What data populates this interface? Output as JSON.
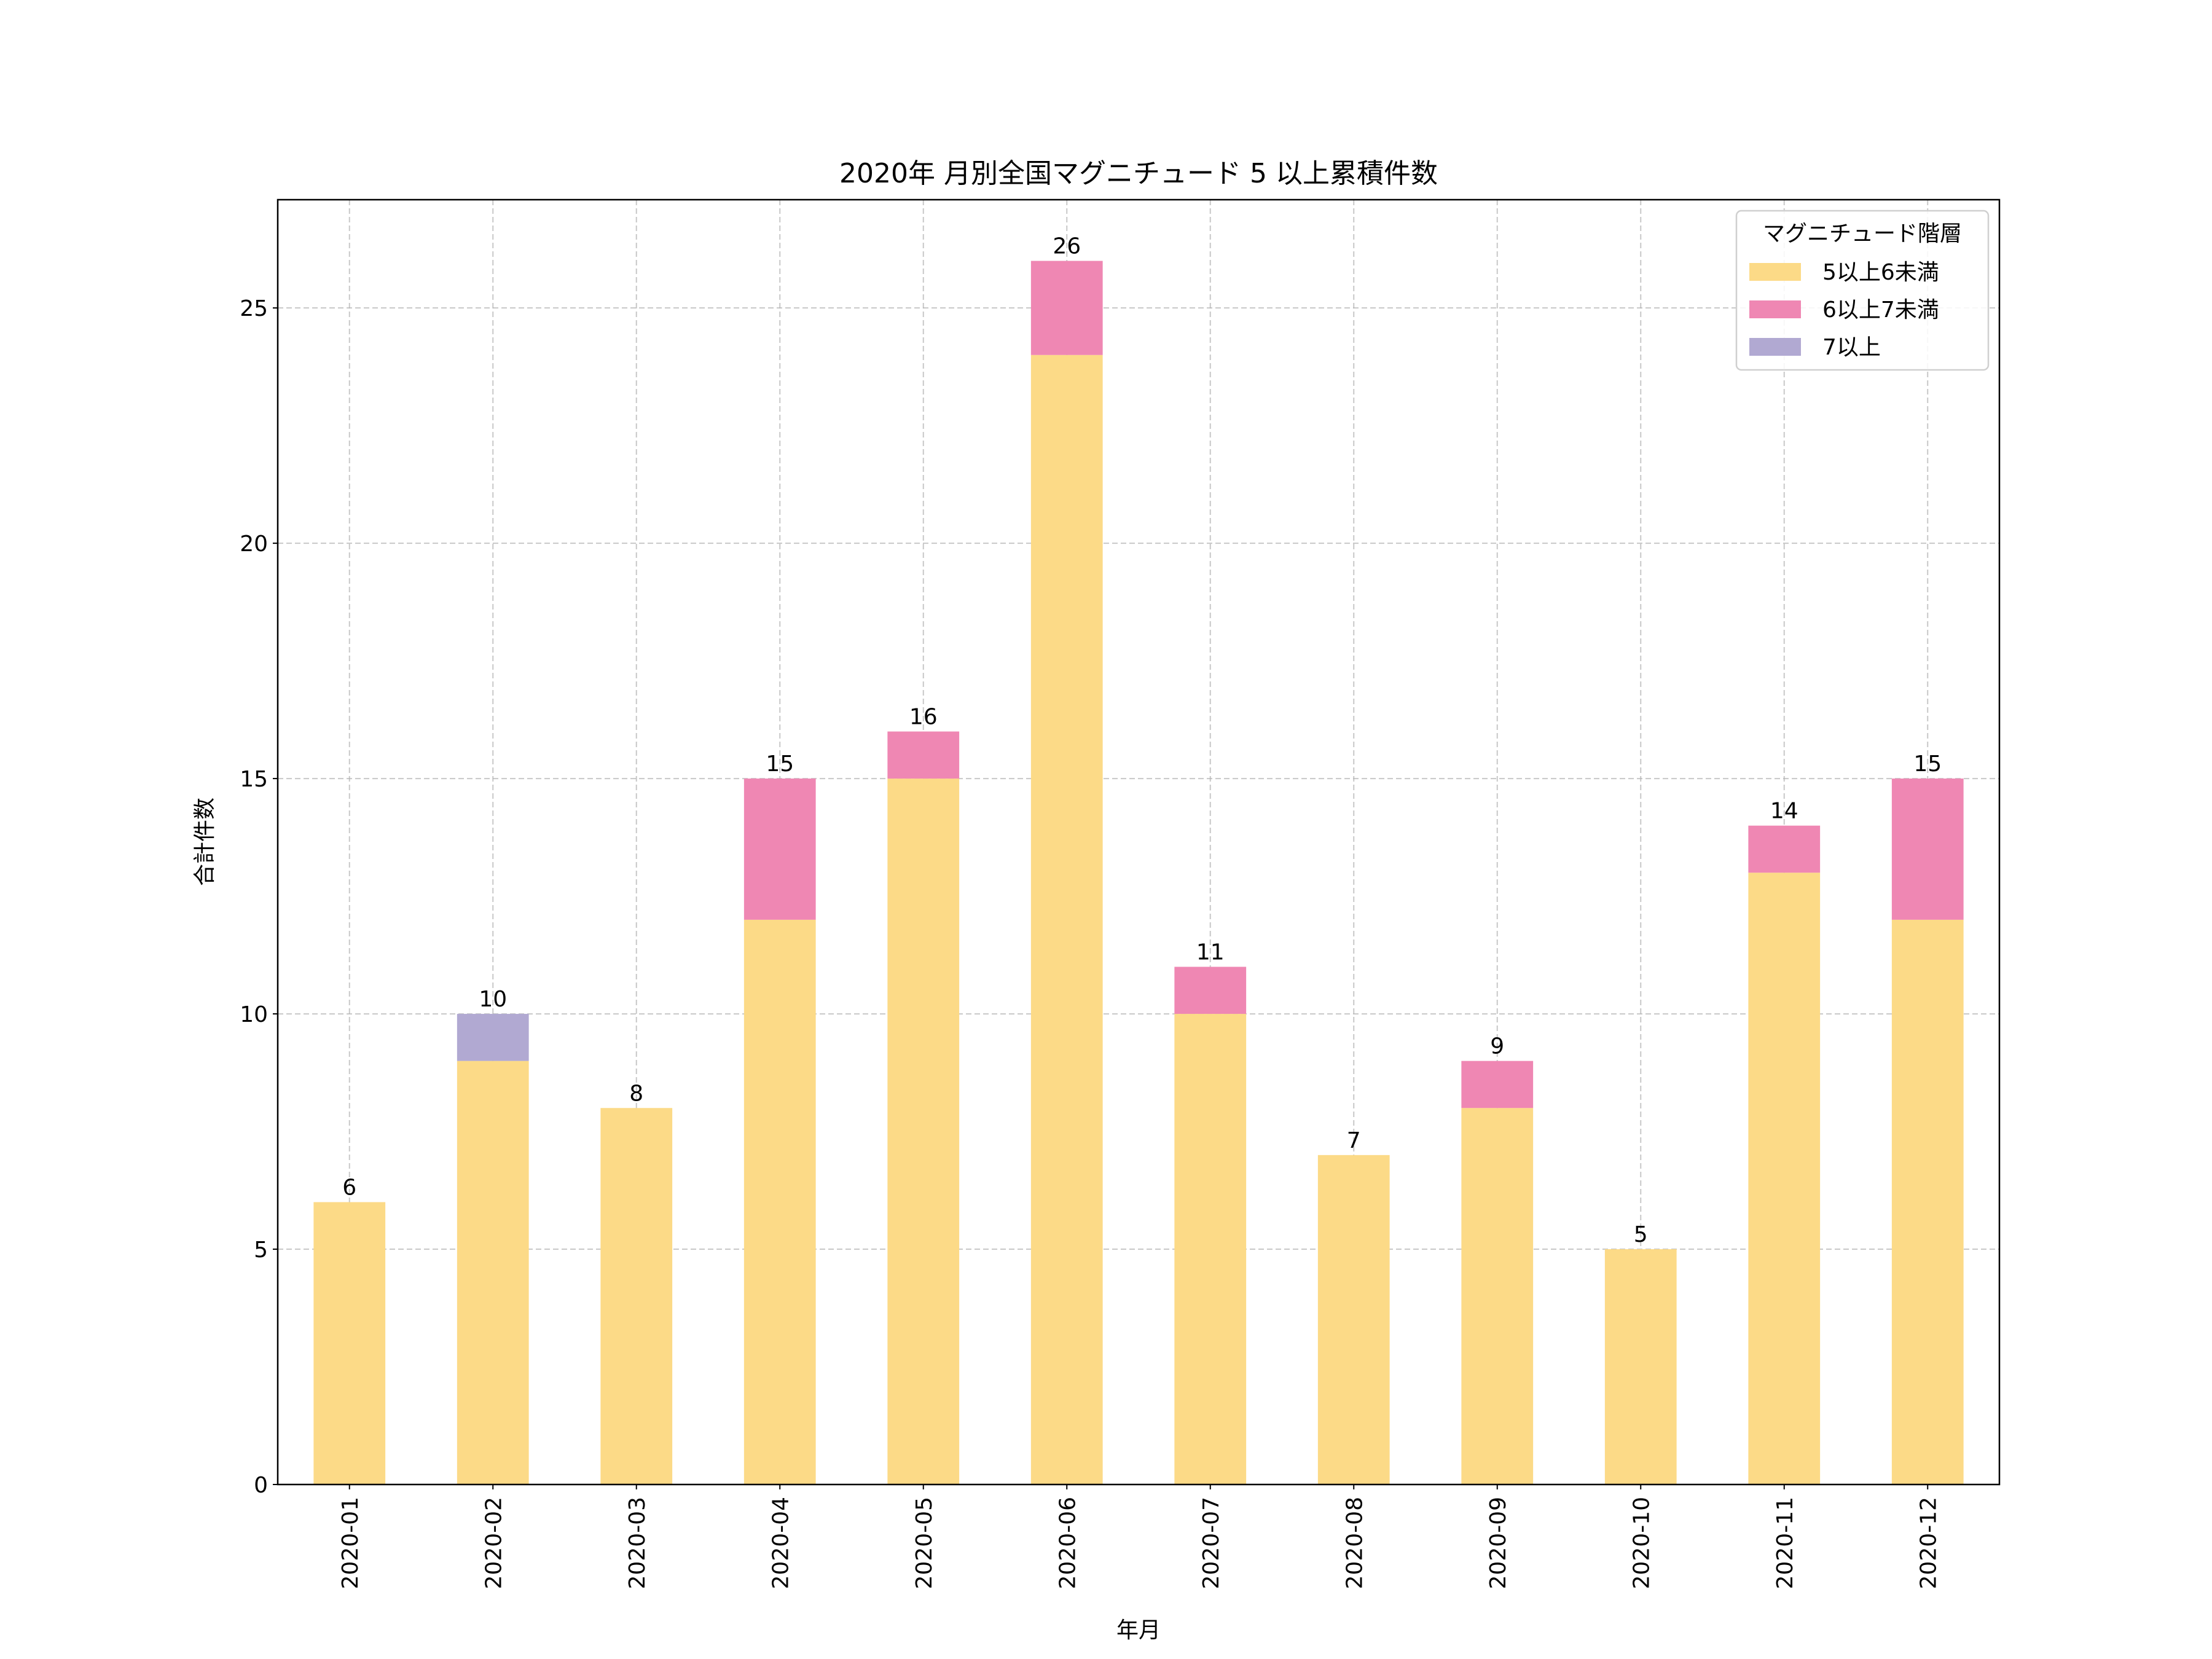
{
  "chart_data": {
    "type": "bar",
    "stacked": true,
    "title": "2020年 月別全国マグニチュード 5 以上累積件数",
    "xlabel": "年月",
    "ylabel": "合計件数",
    "categories": [
      "2020-01",
      "2020-02",
      "2020-03",
      "2020-04",
      "2020-05",
      "2020-06",
      "2020-07",
      "2020-08",
      "2020-09",
      "2020-10",
      "2020-11",
      "2020-12"
    ],
    "series": [
      {
        "name": "5以上6未満",
        "color": "#fcda87",
        "values": [
          6,
          9,
          8,
          12,
          15,
          24,
          10,
          7,
          8,
          5,
          13,
          12
        ]
      },
      {
        "name": "6以上7未満",
        "color": "#ef87b3",
        "values": [
          0,
          0,
          0,
          3,
          1,
          2,
          1,
          0,
          1,
          0,
          1,
          3
        ]
      },
      {
        "name": "7以上",
        "color": "#b1a9d2",
        "values": [
          0,
          1,
          0,
          0,
          0,
          0,
          0,
          0,
          0,
          0,
          0,
          0
        ]
      }
    ],
    "totals": [
      6,
      10,
      8,
      15,
      16,
      26,
      11,
      7,
      9,
      5,
      14,
      15
    ],
    "ylim": [
      0,
      27.3
    ],
    "yticks": [
      0,
      5,
      10,
      15,
      20,
      25
    ],
    "grid": true,
    "legend": {
      "title": "マグニチュード階層",
      "placement": "top-right"
    }
  }
}
